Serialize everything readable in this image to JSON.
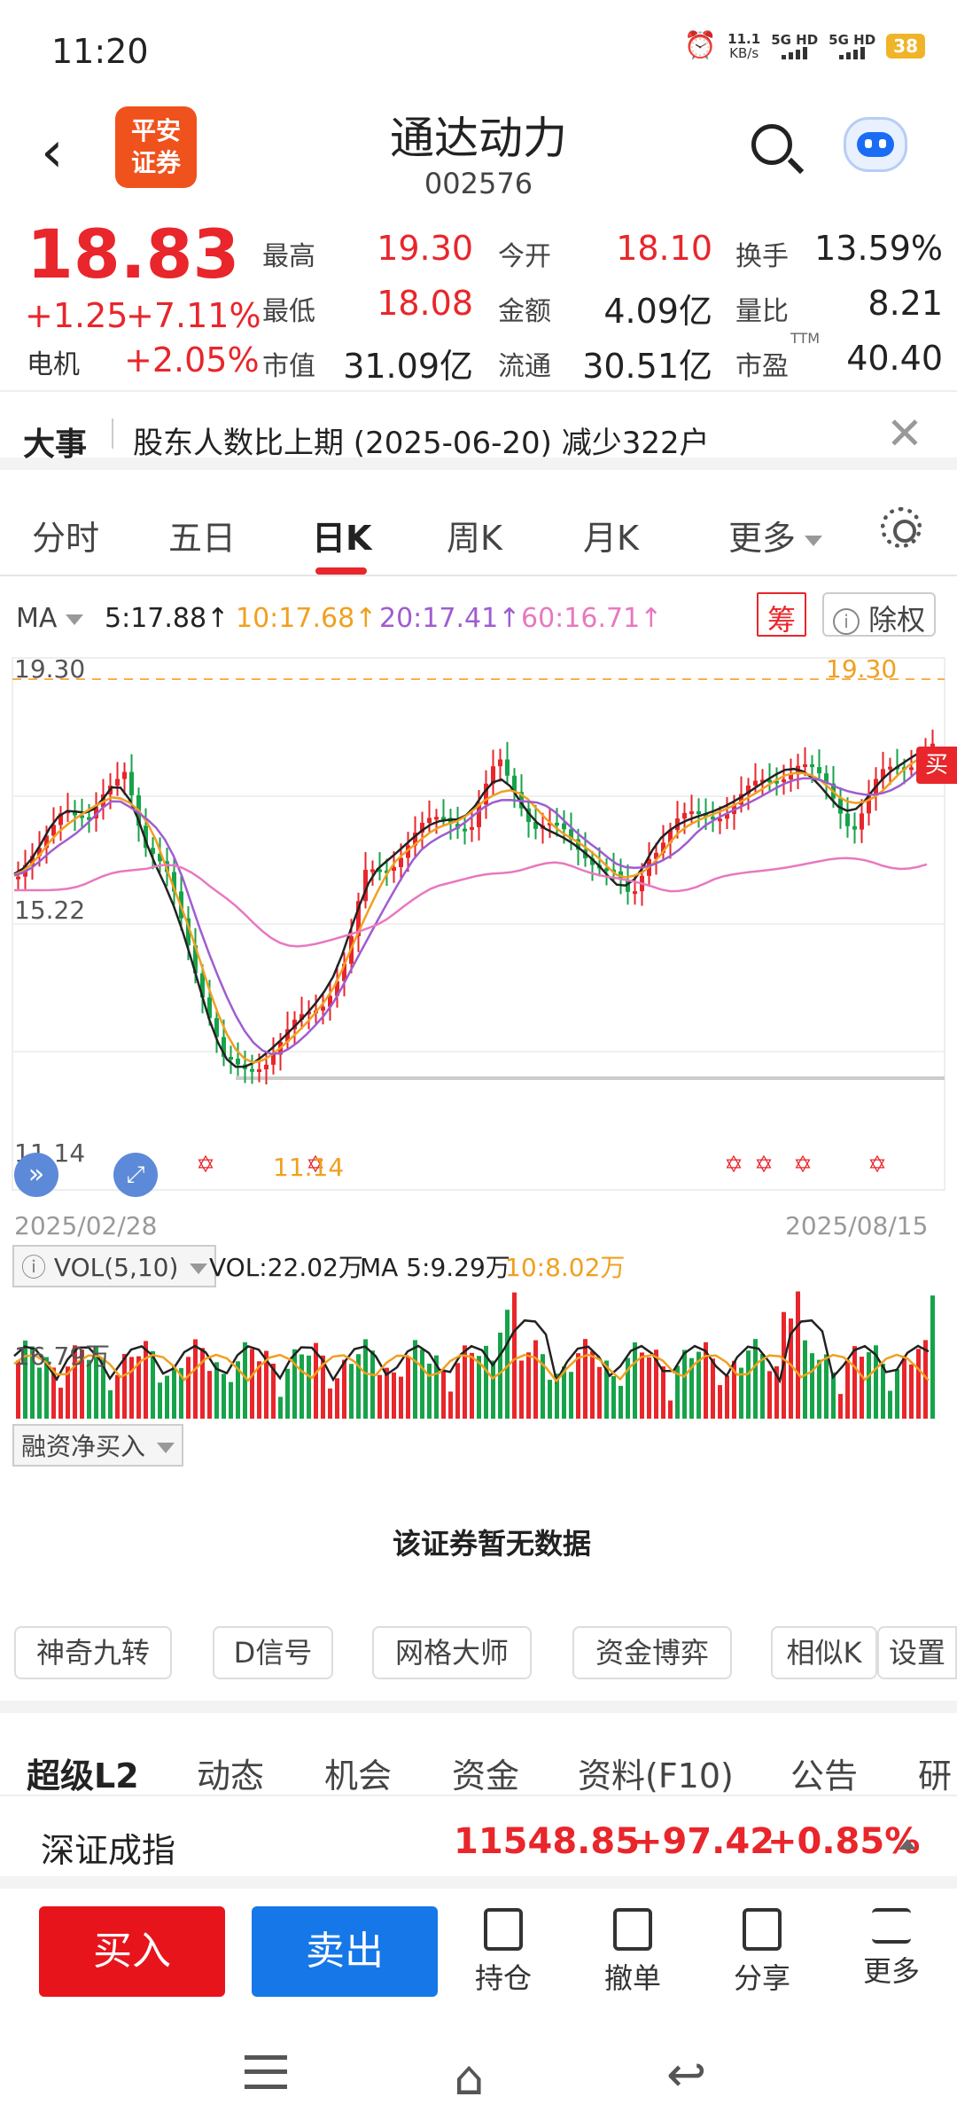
{
  "status_bar": {
    "time": "11:20",
    "speed": "11.1",
    "speed_unit": "KB/s",
    "net1": "5G HD",
    "net2": "5G HD",
    "battery": "38"
  },
  "header": {
    "back_icon": "back-arrow-icon",
    "broker_logo": "平安\n证券",
    "stock_name": "通达动力",
    "stock_code": "002576"
  },
  "quote": {
    "price": "18.83",
    "change": "+1.25",
    "change_pct": "+7.11%",
    "sector": "电机",
    "sector_pct": "+2.05%",
    "fields": [
      {
        "label": "最高",
        "value": "19.30",
        "color": "#e8262b"
      },
      {
        "label": "今开",
        "value": "18.10",
        "color": "#e8262b"
      },
      {
        "label": "换手",
        "value": "13.59%",
        "color": "#222222"
      },
      {
        "label": "最低",
        "value": "18.08",
        "color": "#e8262b"
      },
      {
        "label": "金额",
        "value": "4.09亿",
        "color": "#222222"
      },
      {
        "label": "量比",
        "value": "8.21",
        "color": "#222222"
      },
      {
        "label": "市值",
        "value": "31.09亿",
        "color": "#222222"
      },
      {
        "label": "流通",
        "value": "30.51亿",
        "color": "#222222"
      },
      {
        "label": "市盈",
        "value": "40.40",
        "color": "#222222"
      }
    ],
    "ttm": "TTM"
  },
  "event": {
    "tag": "大事",
    "text": "股东人数比上期 (2025-06-20) 减少322户"
  },
  "k_tabs": {
    "tabs": [
      "分时",
      "五日",
      "日K",
      "周K",
      "月K"
    ],
    "more": "更多",
    "active": "日K"
  },
  "ma": {
    "label": "MA",
    "ma5": "5:17.88↑",
    "ma10": "10:17.68↑",
    "ma20": "20:17.41↑",
    "ma60": "60:16.71↑",
    "chip": "筹",
    "fq": "除权"
  },
  "colors": {
    "up": "#e8262b",
    "down": "#17a34a",
    "ma5": "#222222",
    "ma10": "#f0a020",
    "ma20": "#a05cd0",
    "ma60": "#e878c0"
  },
  "chart_data": {
    "type": "candlestick",
    "y_high_label": "19.30",
    "y_mid_label": "15.22",
    "y_low_label": "11.14",
    "high_marker": "19.30",
    "low_marker": "11.14",
    "date_start": "2025/02/28",
    "date_end": "2025/08/15",
    "ylim": [
      11.14,
      19.3
    ],
    "signal": "买"
  },
  "volume": {
    "selector": "VOL(5,10)",
    "vol": "VOL:22.02万",
    "ma5": "MA 5:9.29万",
    "ma10": "10:8.02万",
    "axis_label": "16.79万"
  },
  "margin": {
    "selector": "融资净买入",
    "empty_text": "该证券暂无数据"
  },
  "tools": [
    "神奇九转",
    "D信号",
    "网格大师",
    "资金博弈",
    "相似K",
    "设置"
  ],
  "bottom_tabs": {
    "tabs": [
      "超级L2",
      "动态",
      "机会",
      "资金",
      "资料(F10)",
      "公告",
      "研"
    ],
    "active": "超级L2"
  },
  "index": {
    "name": "深证成指",
    "value": "11548.85",
    "change": "+97.42",
    "pct": "+0.85%"
  },
  "actions": {
    "buy": "买入",
    "sell": "卖出",
    "hold": "持仓",
    "cancel": "撤单",
    "share": "分享",
    "more": "更多"
  }
}
